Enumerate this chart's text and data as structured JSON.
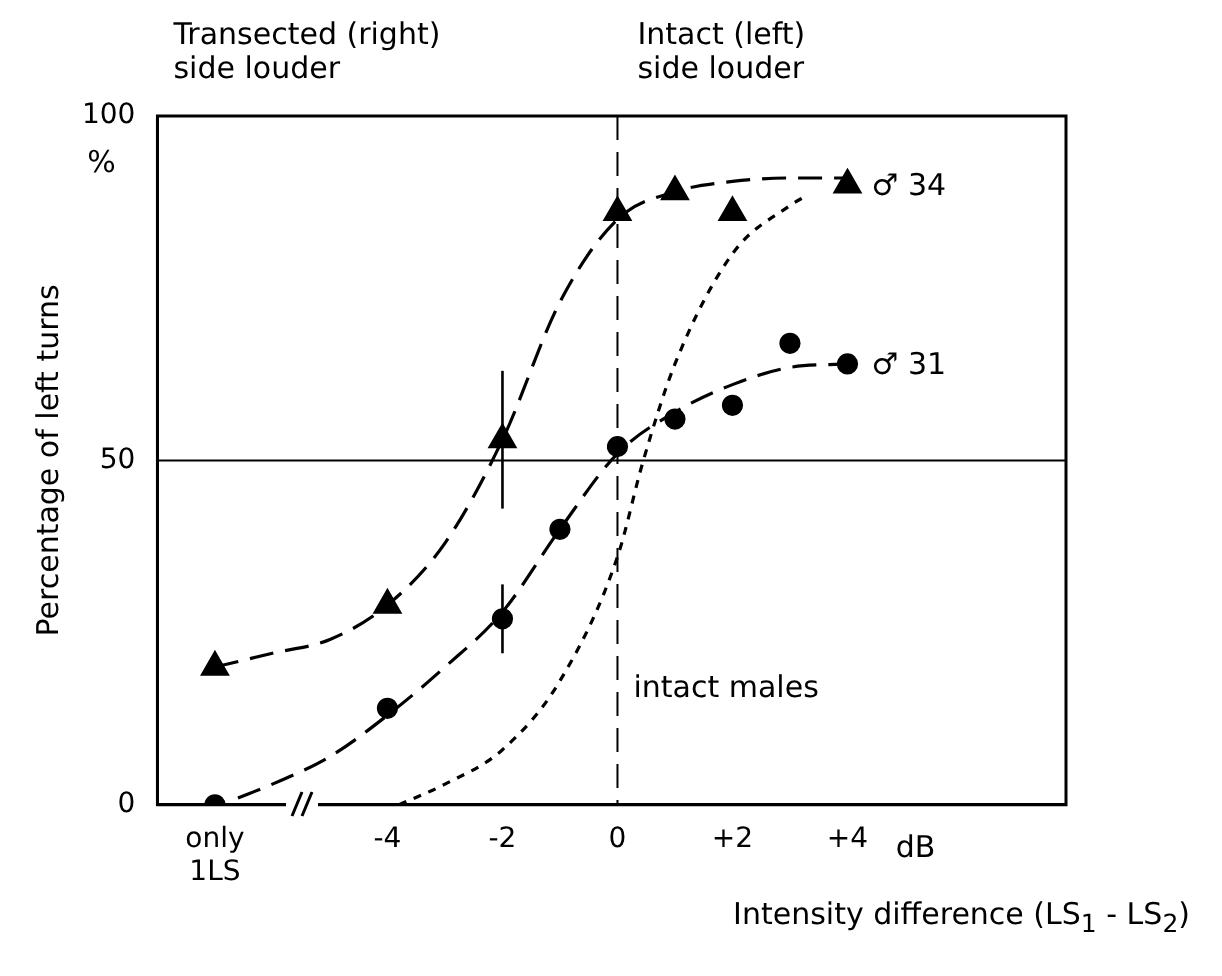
{
  "chart_data": {
    "type": "scatter",
    "xlabel": "Intensity difference (LS$_{1}$ - LS$_{2}$)",
    "ylabel": "Percentage of left turns",
    "annotations": [
      "Transected (right)\nside louder",
      "Intact (left)\nside louder",
      "%",
      "dB"
    ],
    "xlim": [
      -8,
      7.8
    ],
    "ylim": [
      0,
      100
    ],
    "xticks": [
      {
        "value": -7,
        "label": "only 1LS"
      },
      -4,
      -2,
      0,
      {
        "value": 2,
        "label": "+2"
      },
      {
        "value": 4,
        "label": "+4"
      }
    ],
    "yticks": [
      0,
      50,
      100
    ],
    "grid": false,
    "legend": false,
    "ref_lines": [
      {
        "axis": "y",
        "value": 50
      },
      {
        "axis": "x",
        "value": 0,
        "line_style": "dashed"
      }
    ],
    "series": [
      {
        "name": "♂ 34",
        "type": "scatter",
        "marker": "triangle",
        "color": "#000000",
        "x": [
          -7,
          -4,
          -2,
          0,
          1,
          2,
          4
        ],
        "values": [
          20,
          29,
          53,
          86,
          89,
          86,
          90
        ],
        "errors": [
          null,
          null,
          10,
          null,
          null,
          null,
          null
        ]
      },
      {
        "name": "♂ 31",
        "type": "scatter",
        "marker": "circle",
        "color": "#000000",
        "x": [
          -7,
          -4,
          -2,
          -1,
          0,
          1,
          2,
          3,
          4
        ],
        "values": [
          0,
          14,
          27,
          40,
          52,
          56,
          58,
          67,
          64
        ],
        "errors": [
          null,
          null,
          5,
          null,
          null,
          null,
          null,
          null,
          null
        ]
      },
      {
        "type": "line",
        "marker": "none",
        "line_style": "dashed",
        "color": "#000000",
        "x": [
          -7,
          -6,
          -5,
          -4,
          -3,
          -2,
          -1,
          0,
          1,
          2,
          3,
          4
        ],
        "values": [
          20,
          22,
          24,
          29,
          38,
          53,
          73,
          85,
          89,
          90.5,
          91,
          91
        ]
      },
      {
        "type": "line",
        "marker": "none",
        "line_style": "dashed",
        "color": "#000000",
        "x": [
          -6.6,
          -6,
          -5,
          -4,
          -3,
          -2,
          -1,
          0,
          1,
          2,
          3,
          4
        ],
        "values": [
          1,
          3,
          7,
          13,
          20,
          28,
          40,
          51,
          57,
          61,
          63.5,
          64
        ]
      },
      {
        "name": "intact males",
        "type": "line",
        "marker": "none",
        "line_style": "dotted",
        "color": "#000000",
        "x": [
          -3.8,
          -3,
          -2,
          -1,
          0,
          0.45,
          1,
          2,
          3,
          3.3
        ],
        "values": [
          0,
          3,
          8,
          18,
          36,
          50,
          64,
          80,
          87,
          88.5
        ]
      }
    ]
  }
}
